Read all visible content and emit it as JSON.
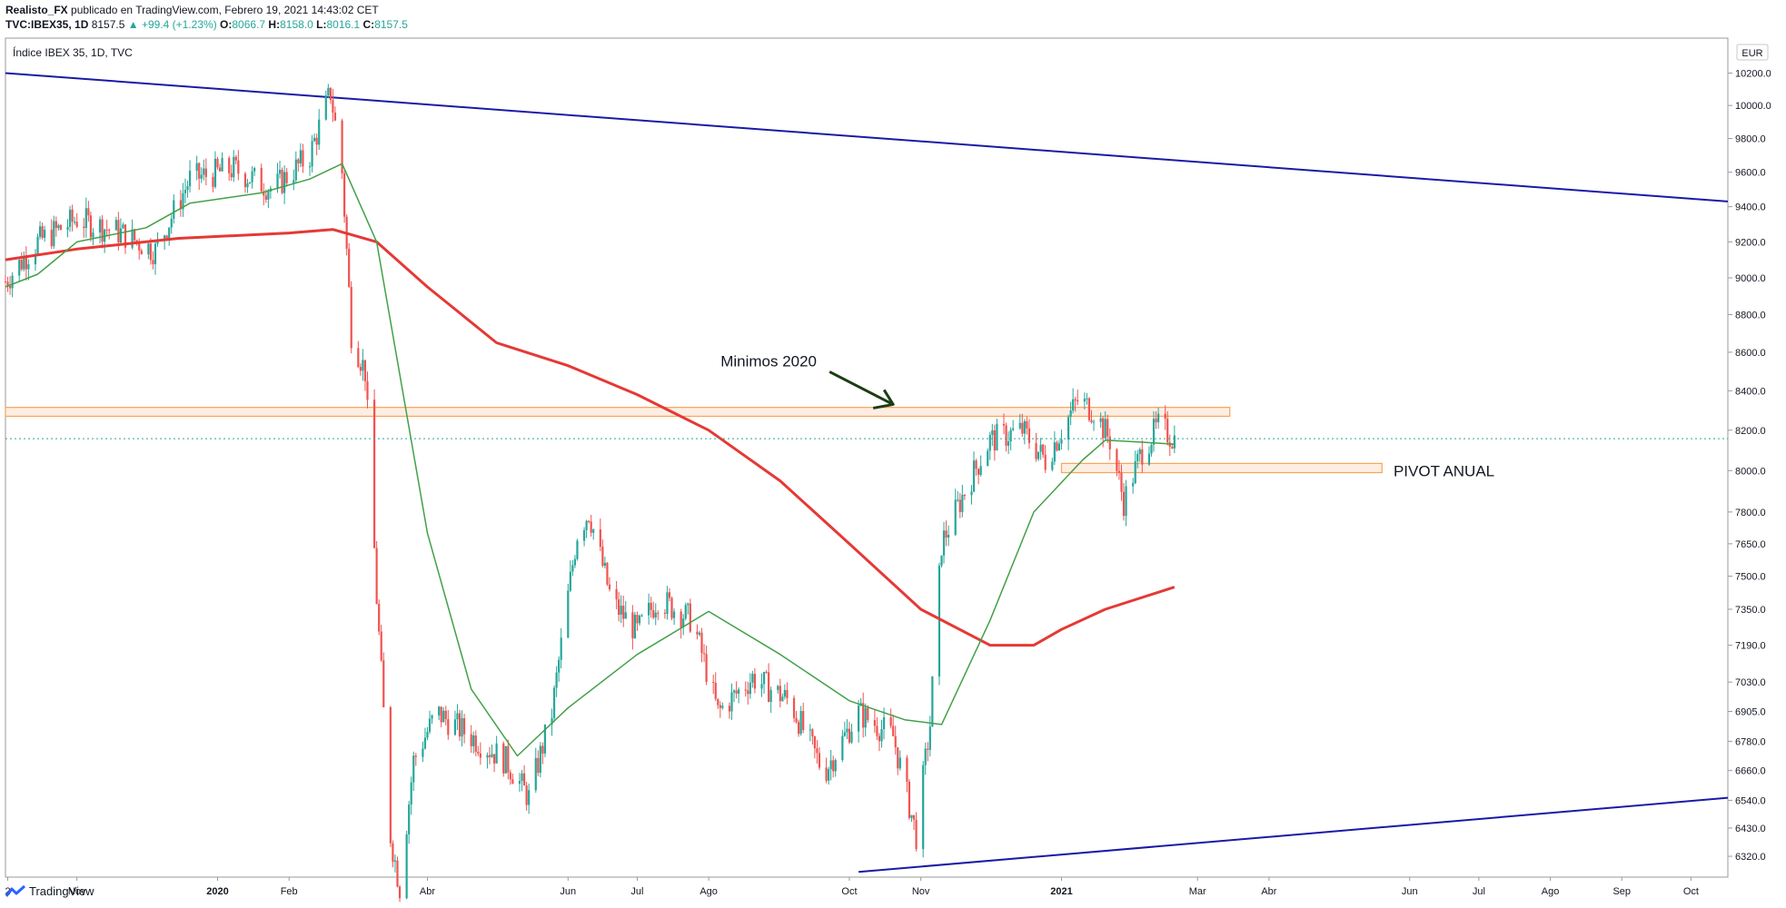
{
  "header": {
    "author": "Realisto_FX",
    "published_text": "publicado en TradingView.com, Febrero 19, 2021 14:43:02 CET",
    "symbol": "TVC:IBEX35, 1D",
    "last": "8157.5",
    "change": "▲ +99.4 (+1.23%)",
    "o_label": "O:",
    "o_value": "8066.7",
    "h_label": "H:",
    "h_value": "8158.0",
    "l_label": "L:",
    "l_value": "8016.1",
    "c_label": "C:",
    "c_value": "8157.5"
  },
  "footer": {
    "brand": "TradingView"
  },
  "colors": {
    "up": "#26a69a",
    "down": "#ef5350",
    "trendline": "#1a1aa6",
    "sma_long": "#e53935",
    "sma_short": "#43a047",
    "zone": "#f7a35c",
    "arrow": "#1b3d12"
  },
  "chart_data": {
    "type": "candlestick",
    "title": "Índice IBEX 35, 1D, TVC",
    "currency": "EUR",
    "y_scale": "log",
    "y_ticks": [
      6320,
      6430,
      6540,
      6660,
      6780,
      6905,
      7030,
      7190,
      7350,
      7500,
      7650,
      7800,
      8000,
      8200,
      8400,
      8600,
      8800,
      9000,
      9200,
      9400,
      9600,
      9800,
      10000,
      10200
    ],
    "x_ticks": [
      "2",
      "Nov",
      "2020",
      "Feb",
      "Abr",
      "Jun",
      "Jul",
      "Ago",
      "Oct",
      "Nov",
      "2021",
      "Mar",
      "Abr",
      "Jun",
      "Jul",
      "Ago",
      "Sep",
      "Oct"
    ],
    "x_tick_dates": [
      "2019-10-02",
      "2019-11-01",
      "2020-01-01",
      "2020-02-01",
      "2020-04-01",
      "2020-06-01",
      "2020-07-01",
      "2020-08-01",
      "2020-10-01",
      "2020-11-01",
      "2021-01-01",
      "2021-03-01",
      "2021-04-01",
      "2021-06-01",
      "2021-07-01",
      "2021-08-01",
      "2021-09-01",
      "2021-10-01"
    ],
    "x_range": [
      "2019-10-01",
      "2021-10-17"
    ],
    "last_price": 8157.5,
    "close_series": [
      [
        "2019-10-01",
        8980
      ],
      [
        "2019-10-15",
        9200
      ],
      [
        "2019-11-01",
        9330
      ],
      [
        "2019-11-20",
        9250
      ],
      [
        "2019-12-05",
        9150
      ],
      [
        "2019-12-20",
        9560
      ],
      [
        "2020-01-08",
        9620
      ],
      [
        "2020-01-25",
        9500
      ],
      [
        "2020-02-10",
        9700
      ],
      [
        "2020-02-19",
        10080
      ],
      [
        "2020-02-24",
        9600
      ],
      [
        "2020-02-28",
        8700
      ],
      [
        "2020-03-05",
        8500
      ],
      [
        "2020-03-10",
        7400
      ],
      [
        "2020-03-16",
        6400
      ],
      [
        "2020-03-20",
        6200
      ],
      [
        "2020-03-26",
        6700
      ],
      [
        "2020-04-05",
        6900
      ],
      [
        "2020-04-20",
        6800
      ],
      [
        "2020-05-05",
        6700
      ],
      [
        "2020-05-15",
        6550
      ],
      [
        "2020-05-25",
        6900
      ],
      [
        "2020-06-05",
        7700
      ],
      [
        "2020-06-10",
        7800
      ],
      [
        "2020-06-20",
        7380
      ],
      [
        "2020-07-01",
        7250
      ],
      [
        "2020-07-10",
        7400
      ],
      [
        "2020-07-25",
        7300
      ],
      [
        "2020-08-05",
        6900
      ],
      [
        "2020-08-20",
        7050
      ],
      [
        "2020-09-05",
        6950
      ],
      [
        "2020-09-20",
        6650
      ],
      [
        "2020-10-05",
        6900
      ],
      [
        "2020-10-20",
        6800
      ],
      [
        "2020-10-30",
        6400
      ],
      [
        "2020-11-05",
        6850
      ],
      [
        "2020-11-10",
        7650
      ],
      [
        "2020-11-20",
        7900
      ],
      [
        "2020-12-01",
        8150
      ],
      [
        "2020-12-15",
        8200
      ],
      [
        "2020-12-25",
        8050
      ],
      [
        "2021-01-08",
        8350
      ],
      [
        "2021-01-15",
        8300
      ],
      [
        "2021-01-22",
        8150
      ],
      [
        "2021-01-28",
        7850
      ],
      [
        "2021-02-05",
        8100
      ],
      [
        "2021-02-12",
        8220
      ],
      [
        "2021-02-19",
        8157.5
      ]
    ],
    "series": [
      {
        "name": "",
        "type": "moving_average_long",
        "points": [
          [
            "2019-10-01",
            9100
          ],
          [
            "2019-11-01",
            9160
          ],
          [
            "2019-12-15",
            9220
          ],
          [
            "2020-02-01",
            9250
          ],
          [
            "2020-02-20",
            9270
          ],
          [
            "2020-03-10",
            9200
          ],
          [
            "2020-04-01",
            8950
          ],
          [
            "2020-05-01",
            8650
          ],
          [
            "2020-06-01",
            8530
          ],
          [
            "2020-07-01",
            8380
          ],
          [
            "2020-08-01",
            8200
          ],
          [
            "2020-09-01",
            7950
          ],
          [
            "2020-10-01",
            7650
          ],
          [
            "2020-11-01",
            7350
          ],
          [
            "2020-12-01",
            7190
          ],
          [
            "2020-12-20",
            7190
          ],
          [
            "2021-01-01",
            7260
          ],
          [
            "2021-01-20",
            7350
          ],
          [
            "2021-02-19",
            7450
          ]
        ]
      },
      {
        "name": "",
        "type": "moving_average_short",
        "points": [
          [
            "2019-10-01",
            8950
          ],
          [
            "2019-10-15",
            9020
          ],
          [
            "2019-11-01",
            9200
          ],
          [
            "2019-12-01",
            9280
          ],
          [
            "2019-12-20",
            9420
          ],
          [
            "2020-01-20",
            9480
          ],
          [
            "2020-02-10",
            9560
          ],
          [
            "2020-02-24",
            9650
          ],
          [
            "2020-03-10",
            9200
          ],
          [
            "2020-04-01",
            7700
          ],
          [
            "2020-04-20",
            7000
          ],
          [
            "2020-05-10",
            6720
          ],
          [
            "2020-06-01",
            6920
          ],
          [
            "2020-07-01",
            7150
          ],
          [
            "2020-08-01",
            7340
          ],
          [
            "2020-09-01",
            7150
          ],
          [
            "2020-10-01",
            6950
          ],
          [
            "2020-10-25",
            6870
          ],
          [
            "2020-11-10",
            6850
          ],
          [
            "2020-12-01",
            7300
          ],
          [
            "2020-12-20",
            7800
          ],
          [
            "2021-01-10",
            8050
          ],
          [
            "2021-01-20",
            8150
          ],
          [
            "2021-02-05",
            8140
          ],
          [
            "2021-02-19",
            8130
          ]
        ]
      }
    ],
    "annotations": [
      {
        "text": "Minimos 2020",
        "type": "label-with-arrow",
        "arrow_to": [
          "2020-10-20",
          8330
        ]
      },
      {
        "text": "PIVOT ANUAL",
        "type": "label",
        "near": [
          "2021-05-25",
          8000
        ]
      }
    ],
    "zones": [
      {
        "name": "",
        "from": "2019-10-01",
        "to": "2021-03-15",
        "low": 8270,
        "high": 8315
      },
      {
        "name": "",
        "from": "2021-01-01",
        "to": "2021-05-20",
        "low": 7990,
        "high": 8035
      }
    ],
    "trendlines": [
      {
        "from": [
          "2019-10-01",
          10200
        ],
        "to": [
          "2021-10-17",
          9430
        ]
      },
      {
        "from": [
          "2020-10-05",
          6260
        ],
        "to": [
          "2021-10-17",
          6550
        ]
      }
    ]
  }
}
